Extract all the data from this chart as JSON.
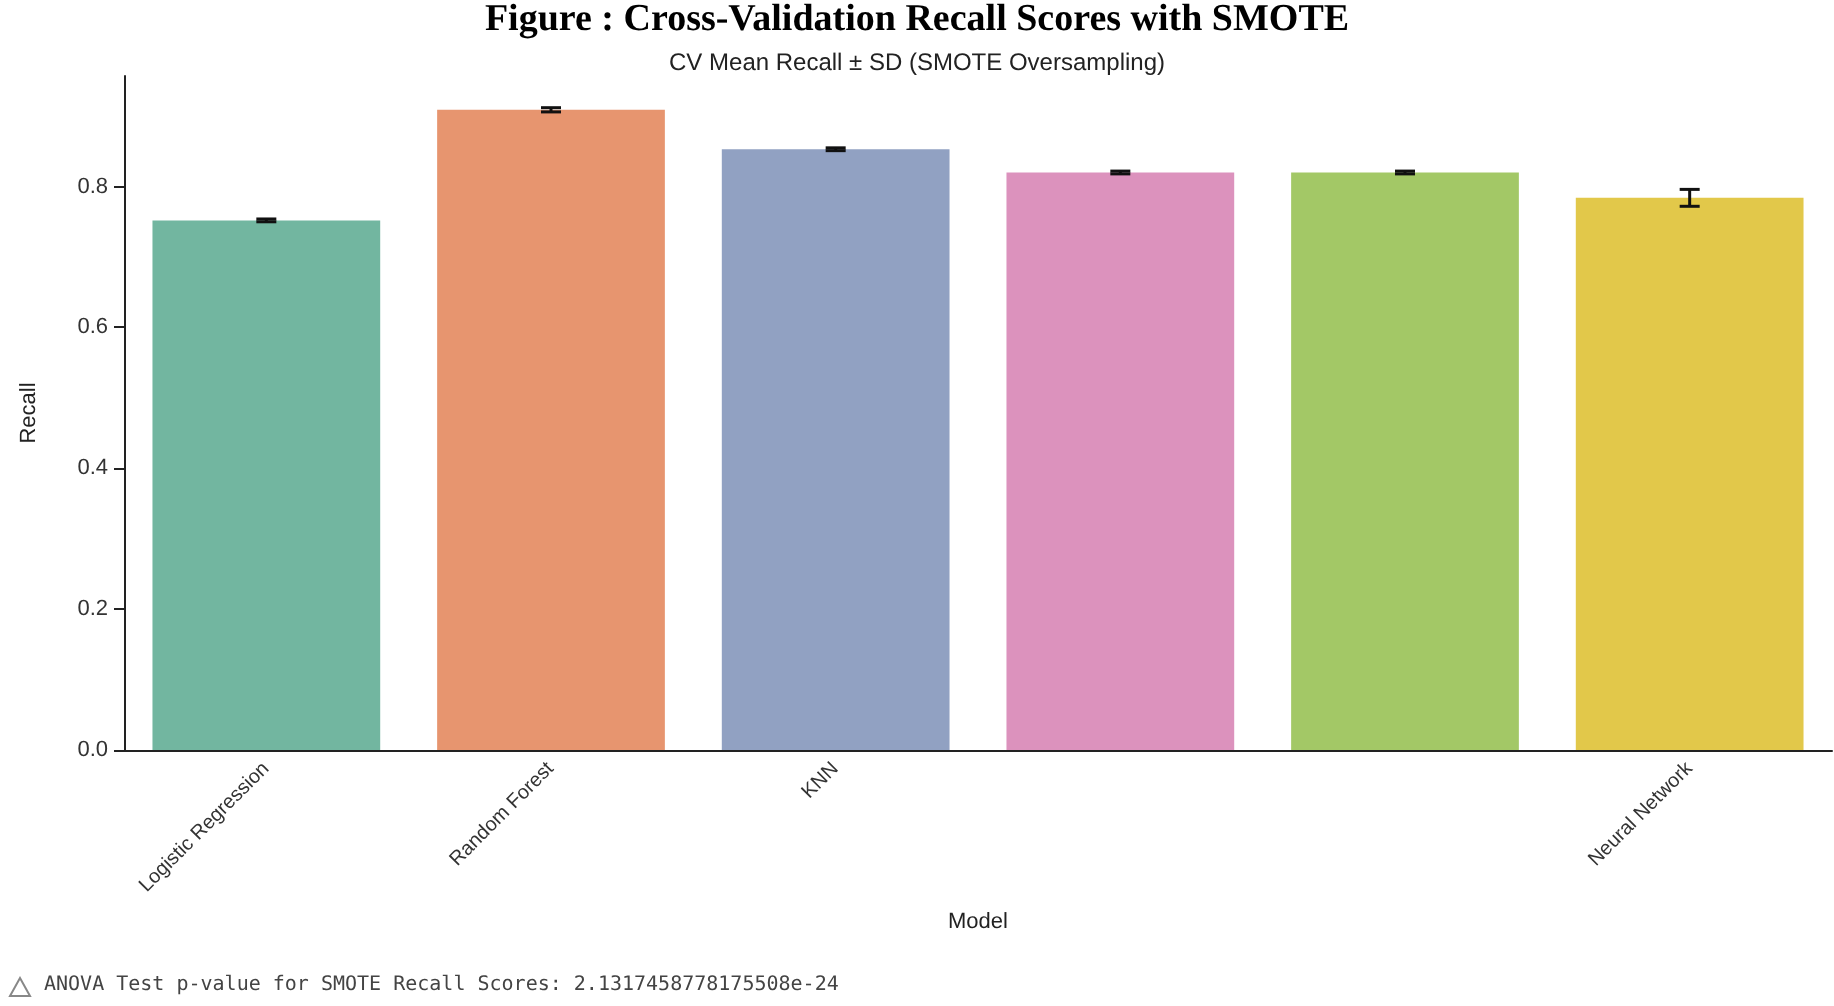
{
  "chart_data": {
    "type": "bar",
    "title": "Figure : Cross-Validation Recall Scores with SMOTE",
    "subtitle": "CV Mean Recall ± SD (SMOTE Oversampling)",
    "xlabel": "Model",
    "ylabel": "Recall",
    "categories": [
      "Logistic Regression",
      "Random Forest",
      "KNN",
      null,
      null,
      "Neural Network"
    ],
    "values": [
      0.752,
      0.909,
      0.853,
      0.82,
      0.82,
      0.784
    ],
    "colors": [
      "#72b6a0",
      "#e7956f",
      "#91a1c2",
      "#dc92bd",
      "#a3c866",
      "#e2c84a"
    ],
    "errors": [
      0.002,
      0.003,
      0.002,
      0.002,
      0.002,
      0.012
    ],
    "ylim": [
      0,
      0.957
    ],
    "yticks": [
      {
        "value": 0,
        "label": "0.0"
      },
      0.2,
      0.4,
      0.6,
      0.8
    ],
    "grid": false,
    "annotations": [
      "ANOVA Test p-value for SMOTE Recall Scores: 2.1317458778175508e-24"
    ]
  }
}
